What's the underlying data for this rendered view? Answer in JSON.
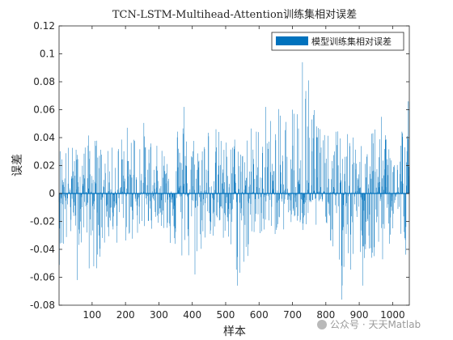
{
  "chart_data": {
    "type": "bar",
    "title": "TCN-LSTM-Multihead-Attention训练集相对误差",
    "xlabel": "样本",
    "ylabel": "误差",
    "xlim": [
      1,
      1050
    ],
    "ylim": [
      -0.08,
      0.12
    ],
    "xticks": [
      100,
      200,
      300,
      400,
      500,
      600,
      700,
      800,
      900,
      1000
    ],
    "yticks": [
      -0.08,
      -0.06,
      -0.04,
      -0.02,
      0,
      0.02,
      0.04,
      0.06,
      0.08,
      0.1,
      0.12
    ],
    "ytick_labels": [
      "-0.08",
      "-0.06",
      "-0.04",
      "-0.02",
      "0",
      "0.02",
      "0.04",
      "0.06",
      "0.08",
      "0.1",
      "0.12"
    ],
    "grid": false,
    "legend_position": "top-right",
    "series": [
      {
        "name": "模型训练集相对误差",
        "color": "#0072BD",
        "n_points": 1050,
        "envelope_bins": [
          1,
          50,
          100,
          150,
          200,
          250,
          300,
          350,
          400,
          450,
          500,
          550,
          600,
          650,
          700,
          750,
          800,
          850,
          900,
          950,
          1000,
          1050
        ],
        "envelope_max": [
          0.038,
          0.035,
          0.045,
          0.03,
          0.05,
          0.055,
          0.032,
          0.062,
          0.045,
          0.055,
          0.04,
          0.048,
          0.052,
          0.06,
          0.065,
          0.095,
          0.04,
          0.052,
          0.035,
          0.06,
          0.045,
          0.066
        ],
        "envelope_min": [
          -0.052,
          -0.03,
          -0.062,
          -0.035,
          -0.038,
          -0.03,
          -0.022,
          -0.045,
          -0.058,
          -0.03,
          -0.045,
          -0.066,
          -0.03,
          -0.03,
          -0.025,
          -0.035,
          -0.02,
          -0.076,
          -0.045,
          -0.066,
          -0.032,
          -0.048
        ],
        "spikes": [
          {
            "x": 730,
            "y": 0.094
          },
          {
            "x": 848,
            "y": -0.076
          },
          {
            "x": 535,
            "y": -0.066
          },
          {
            "x": 910,
            "y": -0.066
          },
          {
            "x": 1047,
            "y": 0.066
          },
          {
            "x": 375,
            "y": 0.062
          },
          {
            "x": 55,
            "y": -0.062
          },
          {
            "x": 408,
            "y": -0.058
          },
          {
            "x": 620,
            "y": 0.062
          },
          {
            "x": 700,
            "y": 0.06
          }
        ]
      }
    ]
  },
  "watermark": "公众号 · 天天Matlab"
}
